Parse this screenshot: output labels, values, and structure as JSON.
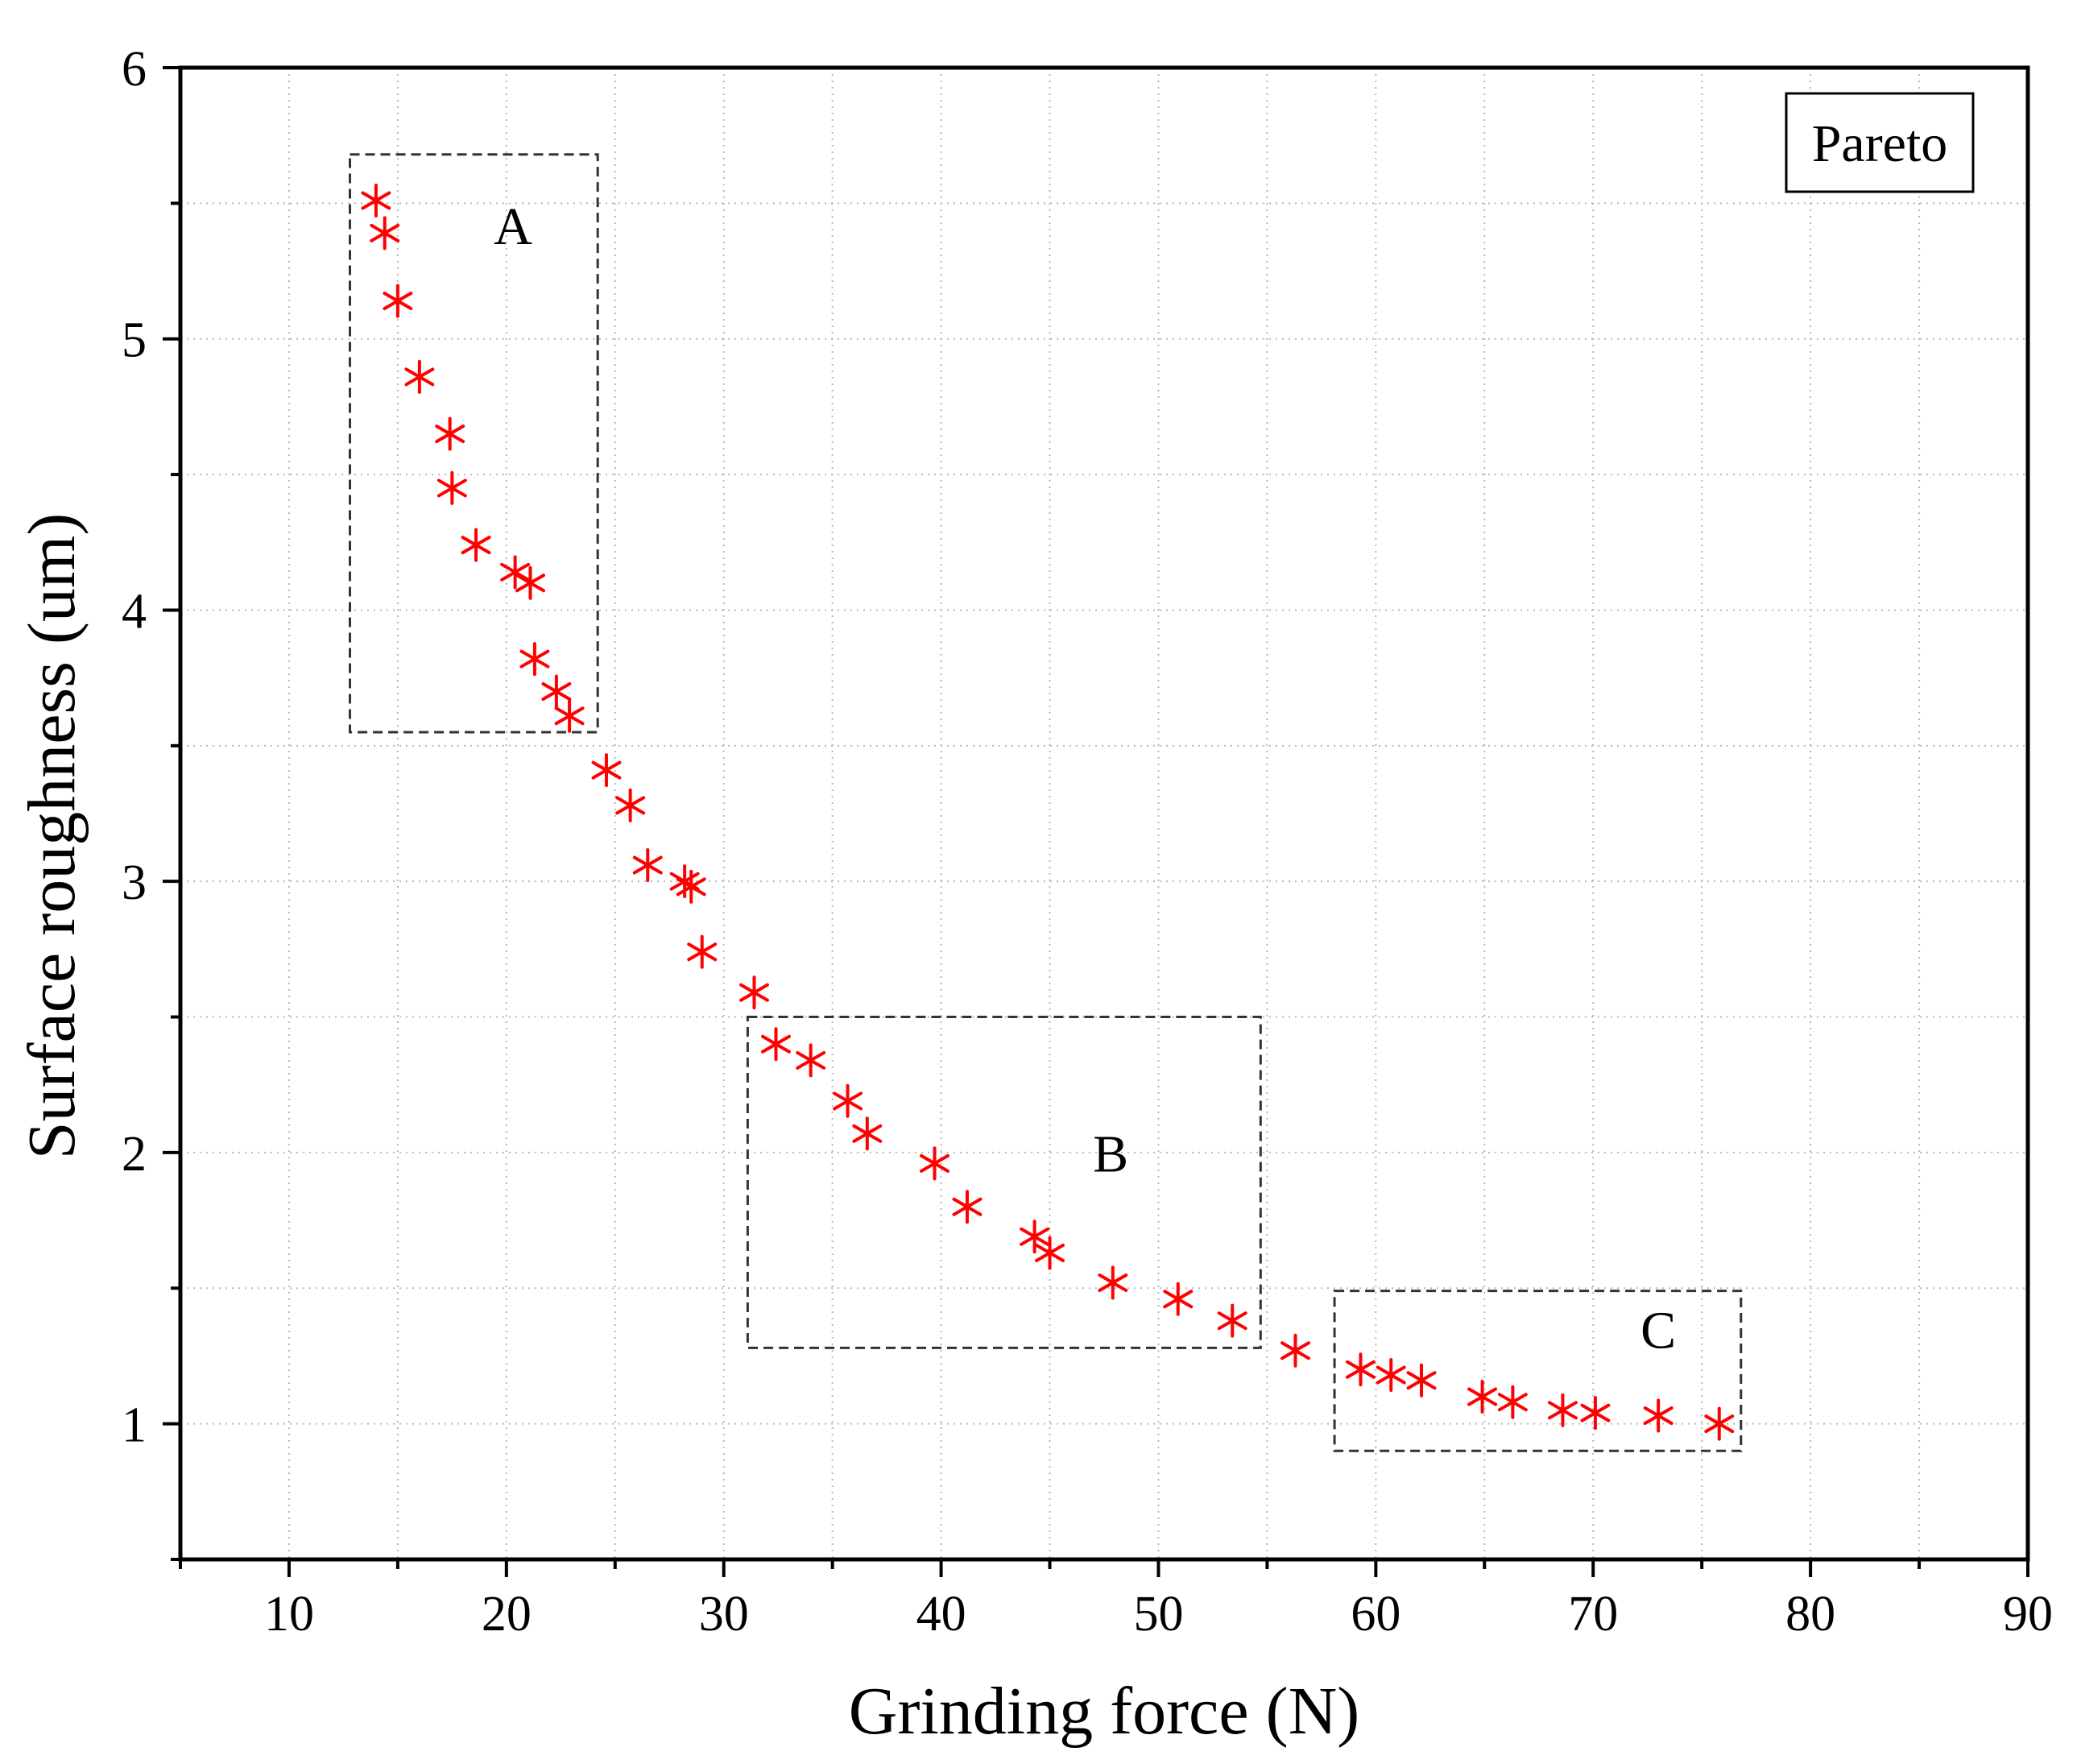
{
  "chart_data": {
    "type": "scatter",
    "title": "",
    "xlabel": "Grinding force (N)",
    "ylabel": "Surface roughness (um)",
    "xlim": [
      5,
      90
    ],
    "ylim": [
      0.5,
      6
    ],
    "x_ticks": [
      10,
      20,
      30,
      40,
      50,
      60,
      70,
      80,
      90
    ],
    "y_ticks": [
      1,
      2,
      3,
      4,
      5,
      6
    ],
    "grid": true,
    "legend": "top-right",
    "marker": "asterisk",
    "series": [
      {
        "name": "Pareto",
        "color": "#ff0000",
        "points": [
          {
            "x": 14.0,
            "y": 5.51
          },
          {
            "x": 14.4,
            "y": 5.39
          },
          {
            "x": 15.0,
            "y": 5.14
          },
          {
            "x": 16.0,
            "y": 4.86
          },
          {
            "x": 17.4,
            "y": 4.65
          },
          {
            "x": 17.5,
            "y": 4.45
          },
          {
            "x": 18.6,
            "y": 4.24
          },
          {
            "x": 20.4,
            "y": 4.14
          },
          {
            "x": 21.1,
            "y": 4.1
          },
          {
            "x": 21.3,
            "y": 3.82
          },
          {
            "x": 22.3,
            "y": 3.7
          },
          {
            "x": 22.9,
            "y": 3.61
          },
          {
            "x": 24.6,
            "y": 3.41
          },
          {
            "x": 25.7,
            "y": 3.28
          },
          {
            "x": 26.5,
            "y": 3.06
          },
          {
            "x": 28.2,
            "y": 3.0
          },
          {
            "x": 28.5,
            "y": 2.98
          },
          {
            "x": 29.0,
            "y": 2.74
          },
          {
            "x": 31.4,
            "y": 2.59
          },
          {
            "x": 32.4,
            "y": 2.4
          },
          {
            "x": 34.0,
            "y": 2.34
          },
          {
            "x": 35.7,
            "y": 2.19
          },
          {
            "x": 36.6,
            "y": 2.07
          },
          {
            "x": 39.7,
            "y": 1.96
          },
          {
            "x": 41.2,
            "y": 1.8
          },
          {
            "x": 44.3,
            "y": 1.69
          },
          {
            "x": 45.0,
            "y": 1.63
          },
          {
            "x": 47.9,
            "y": 1.52
          },
          {
            "x": 50.9,
            "y": 1.46
          },
          {
            "x": 53.4,
            "y": 1.38
          },
          {
            "x": 56.3,
            "y": 1.27
          },
          {
            "x": 59.3,
            "y": 1.2
          },
          {
            "x": 60.7,
            "y": 1.18
          },
          {
            "x": 62.1,
            "y": 1.16
          },
          {
            "x": 64.9,
            "y": 1.1
          },
          {
            "x": 66.3,
            "y": 1.08
          },
          {
            "x": 68.6,
            "y": 1.05
          },
          {
            "x": 70.1,
            "y": 1.04
          },
          {
            "x": 73.0,
            "y": 1.03
          },
          {
            "x": 75.8,
            "y": 1.0
          }
        ]
      }
    ],
    "annotations": [
      {
        "label": "A",
        "box_x": [
          12.8,
          24.2
        ],
        "box_y": [
          3.55,
          5.68
        ]
      },
      {
        "label": "B",
        "box_x": [
          31.1,
          54.7
        ],
        "box_y": [
          1.28,
          2.5
        ]
      },
      {
        "label": "C",
        "box_x": [
          58.1,
          76.8
        ],
        "box_y": [
          0.9,
          1.49
        ]
      }
    ]
  }
}
